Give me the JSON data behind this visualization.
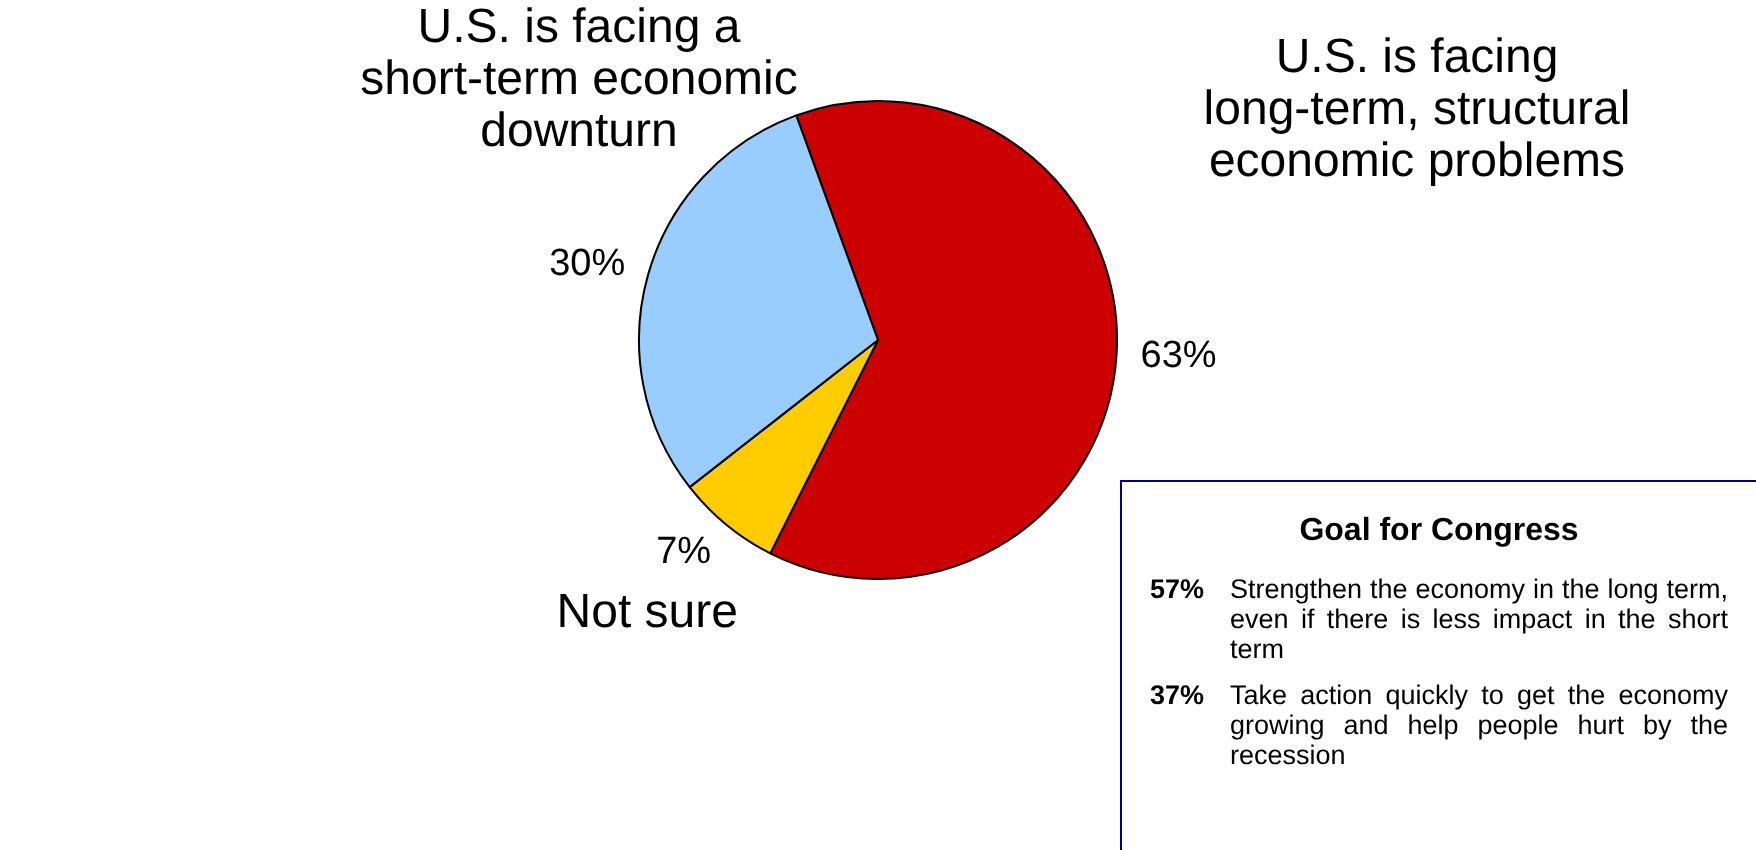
{
  "chart_data": [
    {
      "type": "pie",
      "categories": [
        "U.S. is facing long-term, structural economic problems",
        "Not sure",
        "U.S. is facing a short-term economic downturn"
      ],
      "values": [
        63,
        7,
        30
      ],
      "colors": [
        "#cc0000",
        "#ffcc00",
        "#99ccff"
      ],
      "value_labels": [
        "63%",
        "7%",
        "30%"
      ],
      "legend": false
    },
    {
      "type": "other",
      "title": "Goal for Congress",
      "annotations": [
        "57% Strengthen the economy in the long term, even if there is less impact in the short term",
        "37% Take action quickly to get the economy growing and help people hurt by the recession"
      ]
    }
  ]
}
